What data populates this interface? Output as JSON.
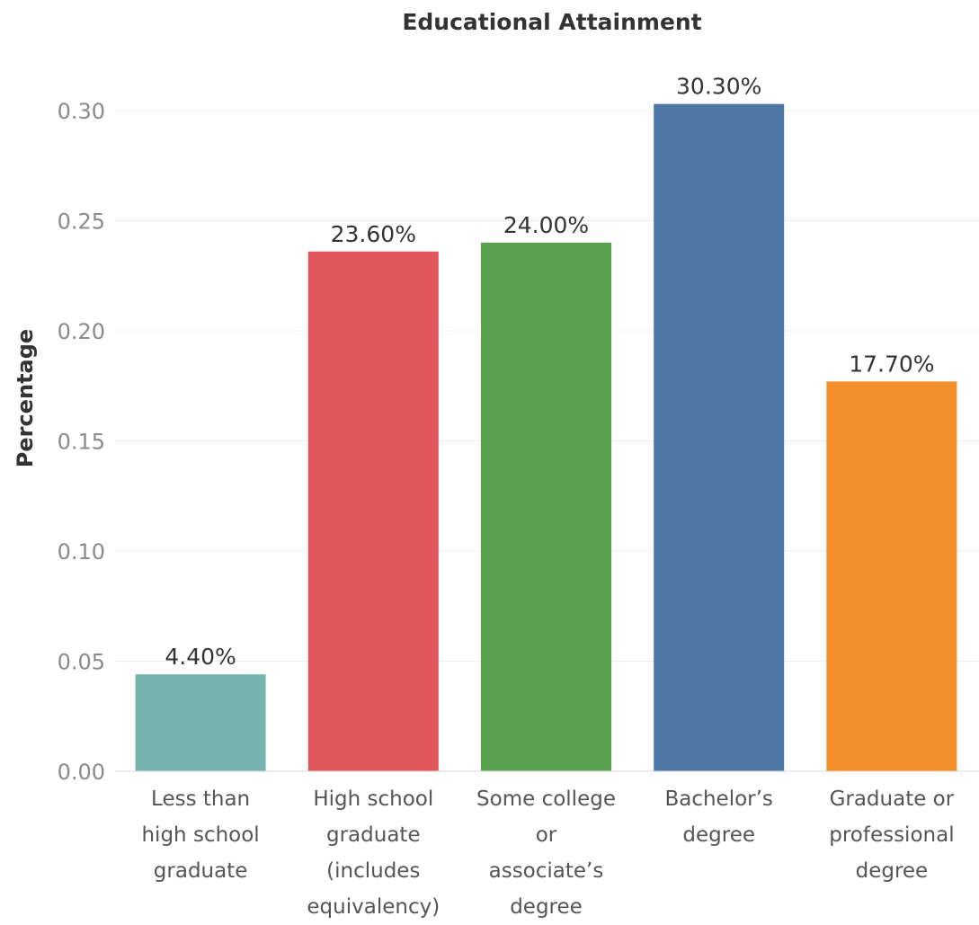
{
  "chart_data": {
    "type": "bar",
    "title": "Educational Attainment",
    "xlabel": "",
    "ylabel": "Percentage",
    "ylim": [
      0,
      0.33
    ],
    "yticks": [
      "0.00",
      "0.05",
      "0.10",
      "0.15",
      "0.20",
      "0.25",
      "0.30"
    ],
    "grid": true,
    "categories": [
      [
        "Less than",
        "high school",
        "graduate"
      ],
      [
        "High school",
        "graduate",
        "(includes",
        "equivalency)"
      ],
      [
        "Some college",
        "or",
        "associate’s",
        "degree"
      ],
      [
        "Bachelor’s",
        "degree"
      ],
      [
        "Graduate or",
        "professional",
        "degree"
      ]
    ],
    "values": [
      0.044,
      0.236,
      0.24,
      0.303,
      0.177
    ],
    "data_labels": [
      "4.40%",
      "23.60%",
      "24.00%",
      "30.30%",
      "17.70%"
    ],
    "colors": [
      "#76b3ad",
      "#e0565b",
      "#59a14f",
      "#4e79a7",
      "#f28e2b"
    ]
  }
}
